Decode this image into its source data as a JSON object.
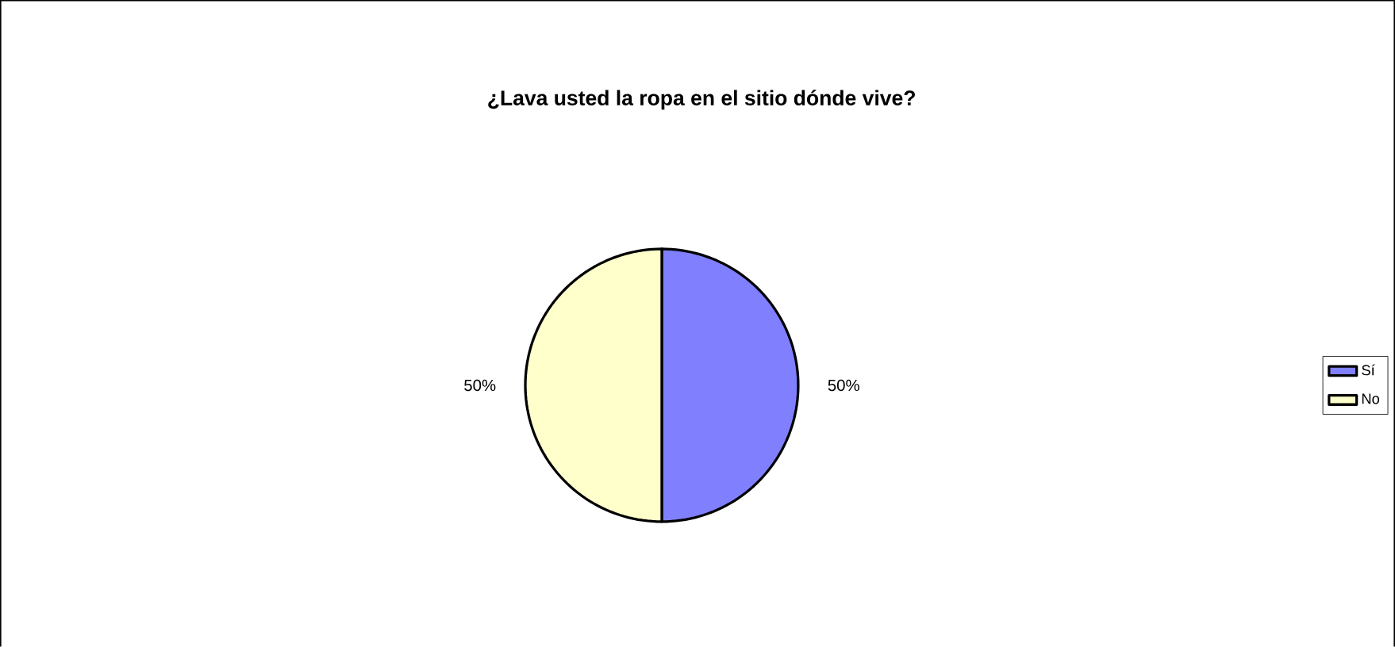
{
  "chart_data": {
    "type": "pie",
    "title": "¿Lava usted la ropa en el sitio dónde vive?",
    "categories": [
      "Sí",
      "No"
    ],
    "values": [
      50,
      50
    ],
    "colors": [
      "#8080ff",
      "#ffffcc"
    ],
    "value_labels": [
      "50%",
      "50%"
    ],
    "legend": "right"
  }
}
